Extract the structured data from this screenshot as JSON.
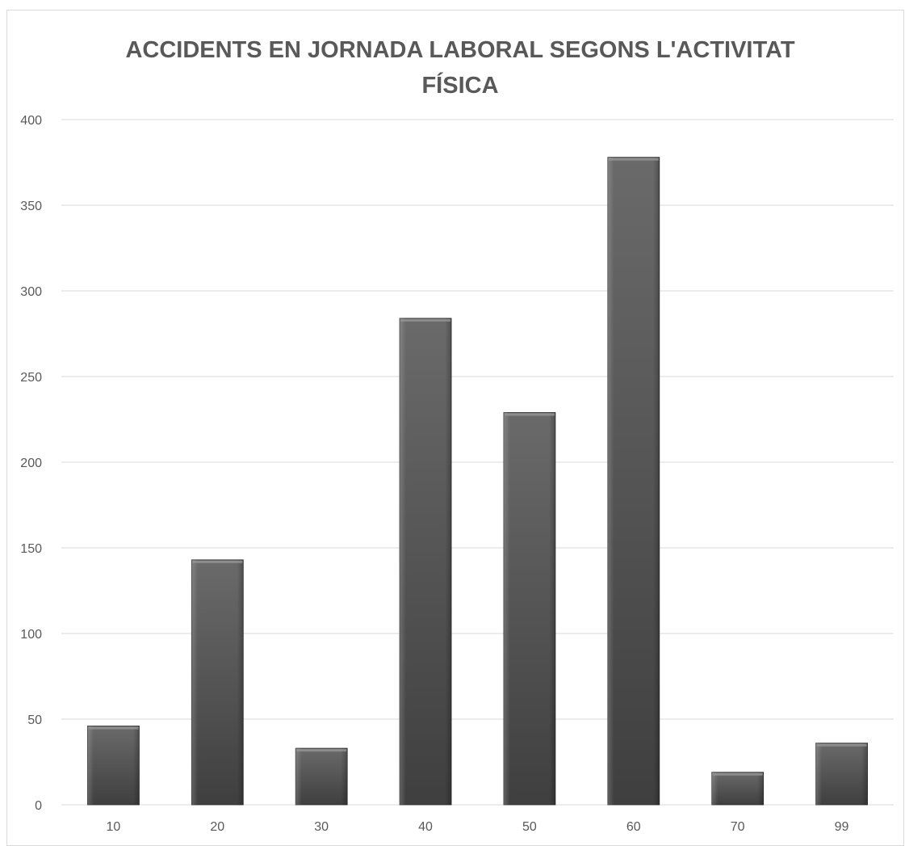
{
  "chart_data": {
    "type": "bar",
    "title": "ACCIDENTS EN JORNADA LABORAL SEGONS L'ACTIVITAT FÍSICA",
    "title_lines": [
      "ACCIDENTS EN JORNADA LABORAL SEGONS L'ACTIVITAT",
      "FÍSICA"
    ],
    "xlabel": "",
    "ylabel": "",
    "categories": [
      "10",
      "20",
      "30",
      "40",
      "50",
      "60",
      "70",
      "99"
    ],
    "values": [
      46,
      143,
      33,
      284,
      229,
      378,
      19,
      36
    ],
    "ylim": [
      0,
      400
    ],
    "yticks": [
      "0",
      "50",
      "100",
      "150",
      "200",
      "250",
      "300",
      "350",
      "400"
    ],
    "grid": true,
    "legend": "none",
    "colors": {
      "bar_dark": "#3f3f3f",
      "bar_light": "#6a6a6a",
      "grid": "#d9d9d9",
      "text": "#595959"
    }
  }
}
